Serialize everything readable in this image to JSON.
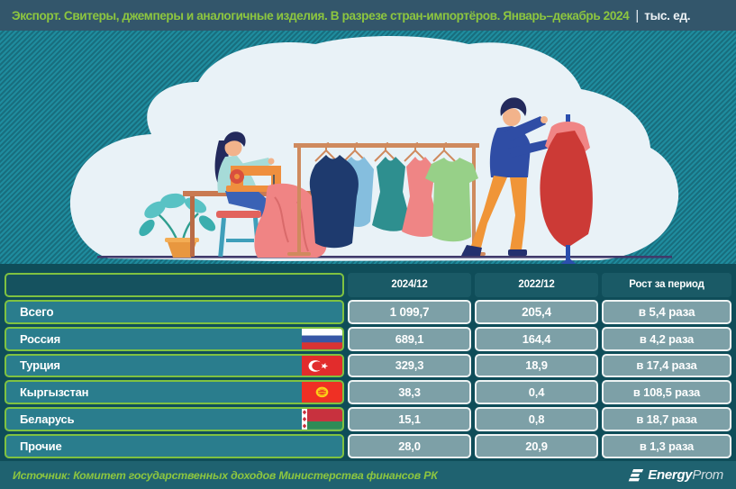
{
  "title": {
    "main": "Экспорт. Свитеры, джемперы и аналогичные изделия. В разрезе стран-импортёров. Январь–декабрь 2024",
    "pipe": "|",
    "unit": "тыс. ед."
  },
  "table": {
    "columns": [
      "2024/12",
      "2022/12",
      "Рост за период"
    ],
    "rows": [
      {
        "label": "Всего",
        "flag": null,
        "total": true,
        "v2024": "1 099,7",
        "v2022": "205,4",
        "growth": "в 5,4 раза"
      },
      {
        "label": "Россия",
        "flag": "russia",
        "total": false,
        "v2024": "689,1",
        "v2022": "164,4",
        "growth": "в 4,2 раза"
      },
      {
        "label": "Турция",
        "flag": "turkey",
        "total": false,
        "v2024": "329,3",
        "v2022": "18,9",
        "growth": "в 17,4 раза"
      },
      {
        "label": "Кыргызстан",
        "flag": "kyrgyzstan",
        "total": false,
        "v2024": "38,3",
        "v2022": "0,4",
        "growth": "в 108,5 раза"
      },
      {
        "label": "Беларусь",
        "flag": "belarus",
        "total": false,
        "v2024": "15,1",
        "v2022": "0,8",
        "growth": "в 18,7 раза"
      },
      {
        "label": "Прочие",
        "flag": null,
        "total": false,
        "v2024": "28,0",
        "v2022": "20,9",
        "growth": "в 1,3 раза"
      }
    ]
  },
  "footer": {
    "source": "Источник: Комитет государственных доходов Министерства финансов РК",
    "logo_bold": "Energy",
    "logo_light": "Prom"
  },
  "colors": {
    "accent_green": "#8dc63f",
    "title_bar": "#33566b",
    "stripe_light": "#1f8c9e",
    "stripe_dark": "#186e7e",
    "panel": "#0f4d59",
    "row_teal": "#2a7d8d",
    "value_cell": "#7da0a7",
    "footer_band": "#1f6270"
  },
  "chart_data": {
    "type": "table",
    "title": "Экспорт. Свитеры, джемперы и аналогичные изделия. В разрезе стран-импортёров. Январь–декабрь 2024",
    "unit": "тыс. ед.",
    "columns": [
      "2024/12",
      "2022/12",
      "Рост за период"
    ],
    "rows": [
      {
        "name": "Всего",
        "v_2024_12": 1099.7,
        "v_2022_12": 205.4,
        "growth": "в 5,4 раза"
      },
      {
        "name": "Россия",
        "v_2024_12": 689.1,
        "v_2022_12": 164.4,
        "growth": "в 4,2 раза"
      },
      {
        "name": "Турция",
        "v_2024_12": 329.3,
        "v_2022_12": 18.9,
        "growth": "в 17,4 раза"
      },
      {
        "name": "Кыргызстан",
        "v_2024_12": 38.3,
        "v_2022_12": 0.4,
        "growth": "в 108,5 раза"
      },
      {
        "name": "Беларусь",
        "v_2024_12": 15.1,
        "v_2022_12": 0.8,
        "growth": "в 18,7 раза"
      },
      {
        "name": "Прочие",
        "v_2024_12": 28.0,
        "v_2022_12": 20.9,
        "growth": "в 1,3 раза"
      }
    ]
  }
}
